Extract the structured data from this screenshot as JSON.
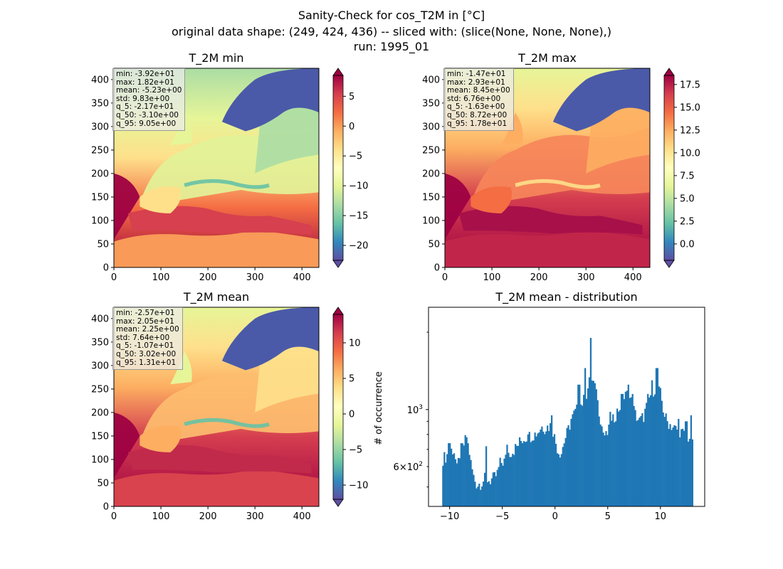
{
  "figure": {
    "suptitle_lines": [
      "Sanity-Check for cos_T2M in [°C]",
      "original data shape: (249, 424, 436) -- sliced with: (slice(None, None, None),)",
      "run: 1995_01"
    ]
  },
  "colors": {
    "spectral_r": [
      "#5e4fa2",
      "#3288bd",
      "#66c2a5",
      "#abdda4",
      "#e6f598",
      "#ffffbf",
      "#fee08b",
      "#fdae61",
      "#f46d43",
      "#d53e4f",
      "#9e0142"
    ],
    "histogram": "#1f77b4",
    "sea_warm": "#a50026",
    "land_mid": "#f2b36b",
    "scandinavia": "#4b5aa8"
  },
  "chart_data": [
    {
      "type": "heatmap",
      "title": "T_2M min",
      "xlim": [
        0,
        436
      ],
      "ylim": [
        0,
        424
      ],
      "xticks": [
        "0",
        "100",
        "200",
        "300",
        "400"
      ],
      "yticks": [
        "0",
        "50",
        "100",
        "150",
        "200",
        "250",
        "300",
        "350",
        "400"
      ],
      "colorbar": {
        "min": -22.5,
        "max": 8.5,
        "extend": "both",
        "ticks": [
          "−20",
          "−15",
          "−10",
          "−5",
          "0",
          "5"
        ],
        "tick_values": [
          -20,
          -15,
          -10,
          -5,
          0,
          5
        ]
      },
      "stats": [
        "min: -3.92e+01",
        "max: 1.82e+01",
        "mean: -5.23e+00",
        "std: 9.83e+00",
        "q_5: -2.17e+01",
        "q_50: -3.10e+00",
        "q_95: 9.05e+00"
      ]
    },
    {
      "type": "heatmap",
      "title": "T_2M max",
      "xlim": [
        0,
        436
      ],
      "ylim": [
        0,
        424
      ],
      "xticks": [
        "0",
        "100",
        "200",
        "300",
        "400"
      ],
      "yticks": [
        "0",
        "50",
        "100",
        "150",
        "200",
        "250",
        "300",
        "350",
        "400"
      ],
      "colorbar": {
        "min": -1.8,
        "max": 18.5,
        "extend": "both",
        "ticks": [
          "0.0",
          "2.5",
          "5.0",
          "7.5",
          "10.0",
          "12.5",
          "15.0",
          "17.5"
        ],
        "tick_values": [
          0,
          2.5,
          5,
          7.5,
          10,
          12.5,
          15,
          17.5
        ]
      },
      "stats": [
        "min: -1.47e+01",
        "max: 2.93e+01",
        "mean: 8.45e+00",
        "std: 6.76e+00",
        "q_5: -1.63e+00",
        "q_50: 8.72e+00",
        "q_95: 1.78e+01"
      ]
    },
    {
      "type": "heatmap",
      "title": "T_2M mean",
      "xlim": [
        0,
        436
      ],
      "ylim": [
        0,
        424
      ],
      "xticks": [
        "0",
        "100",
        "200",
        "300",
        "400"
      ],
      "yticks": [
        "0",
        "50",
        "100",
        "150",
        "200",
        "250",
        "300",
        "350",
        "400"
      ],
      "colorbar": {
        "min": -12,
        "max": 14,
        "extend": "both",
        "ticks": [
          "−10",
          "−5",
          "0",
          "5",
          "10"
        ],
        "tick_values": [
          -10,
          -5,
          0,
          5,
          10
        ]
      },
      "stats": [
        "min: -2.57e+01",
        "max: 2.05e+01",
        "mean: 2.25e+00",
        "std: 7.64e+00",
        "q_5: -1.07e+01",
        "q_50: 3.02e+00",
        "q_95: 1.31e+01"
      ]
    },
    {
      "type": "bar",
      "title": "T_2M mean - distribution",
      "ylabel": "# of occurrence",
      "xlim": [
        -12,
        14.2
      ],
      "ylog": true,
      "ylim": [
        420,
        2500
      ],
      "xticks": [
        "−10",
        "−5",
        "0",
        "5",
        "10"
      ],
      "xtick_values": [
        -10,
        -5,
        0,
        5,
        10
      ],
      "yticks_major": [
        {
          "value": 1000,
          "base": "10",
          "exp": "3"
        }
      ],
      "yticks_minor_labeled": [
        {
          "value": 600,
          "mant": "6",
          "base": "10",
          "exp": "2"
        }
      ],
      "yticks_minor": [
        500,
        700,
        800,
        900,
        2000
      ],
      "bins": {
        "start": -10.7,
        "end": 13.1
      },
      "anchors": [
        [
          -10.7,
          640
        ],
        [
          -10.3,
          660
        ],
        [
          -10.0,
          690
        ],
        [
          -9.6,
          700
        ],
        [
          -9.3,
          580
        ],
        [
          -9.0,
          690
        ],
        [
          -8.7,
          720
        ],
        [
          -8.5,
          760
        ],
        [
          -8.2,
          720
        ],
        [
          -8.0,
          620
        ],
        [
          -7.7,
          540
        ],
        [
          -7.4,
          510
        ],
        [
          -7.0,
          520
        ],
        [
          -6.6,
          540
        ],
        [
          -6.2,
          530
        ],
        [
          -5.8,
          540
        ],
        [
          -5.5,
          560
        ],
        [
          -5.2,
          620
        ],
        [
          -4.8,
          630
        ],
        [
          -4.4,
          680
        ],
        [
          -4.0,
          690
        ],
        [
          -3.6,
          720
        ],
        [
          -3.2,
          760
        ],
        [
          -2.8,
          780
        ],
        [
          -2.4,
          790
        ],
        [
          -2.0,
          800
        ],
        [
          -1.6,
          820
        ],
        [
          -1.3,
          860
        ],
        [
          -1.0,
          850
        ],
        [
          -0.6,
          860
        ],
        [
          -0.3,
          870
        ],
        [
          0.0,
          760
        ],
        [
          0.3,
          690
        ],
        [
          0.6,
          680
        ],
        [
          0.9,
          760
        ],
        [
          1.2,
          820
        ],
        [
          1.5,
          900
        ],
        [
          1.8,
          960
        ],
        [
          2.1,
          1000
        ],
        [
          2.4,
          1040
        ],
        [
          2.7,
          1080
        ],
        [
          3.0,
          1150
        ],
        [
          3.3,
          1300
        ],
        [
          3.6,
          1280
        ],
        [
          3.9,
          1150
        ],
        [
          4.2,
          980
        ],
        [
          4.5,
          830
        ],
        [
          4.8,
          780
        ],
        [
          5.2,
          840
        ],
        [
          5.6,
          930
        ],
        [
          6.0,
          1000
        ],
        [
          6.4,
          1080
        ],
        [
          6.8,
          1150
        ],
        [
          7.2,
          1080
        ],
        [
          7.6,
          960
        ],
        [
          8.0,
          900
        ],
        [
          8.4,
          940
        ],
        [
          8.8,
          1060
        ],
        [
          9.2,
          1180
        ],
        [
          9.6,
          1220
        ],
        [
          10.0,
          1150
        ],
        [
          10.3,
          980
        ],
        [
          10.6,
          900
        ],
        [
          11.0,
          870
        ],
        [
          11.4,
          840
        ],
        [
          11.8,
          830
        ],
        [
          12.2,
          800
        ],
        [
          12.6,
          780
        ],
        [
          13.0,
          780
        ]
      ],
      "spikes": [
        [
          -10.05,
          740
        ],
        [
          -8.35,
          780
        ],
        [
          -6.55,
          720
        ],
        [
          -4.55,
          730
        ],
        [
          -3.35,
          780
        ],
        [
          -2.55,
          800
        ],
        [
          -0.35,
          950
        ],
        [
          1.55,
          920
        ],
        [
          2.25,
          1250
        ],
        [
          2.85,
          1450
        ],
        [
          3.35,
          1900
        ],
        [
          3.85,
          1200
        ],
        [
          5.25,
          980
        ],
        [
          6.35,
          1150
        ],
        [
          6.95,
          1250
        ],
        [
          7.35,
          1150
        ],
        [
          8.75,
          1150
        ],
        [
          9.25,
          1300
        ],
        [
          9.65,
          1450
        ],
        [
          11.75,
          920
        ],
        [
          12.45,
          900
        ],
        [
          12.95,
          950
        ]
      ]
    }
  ]
}
